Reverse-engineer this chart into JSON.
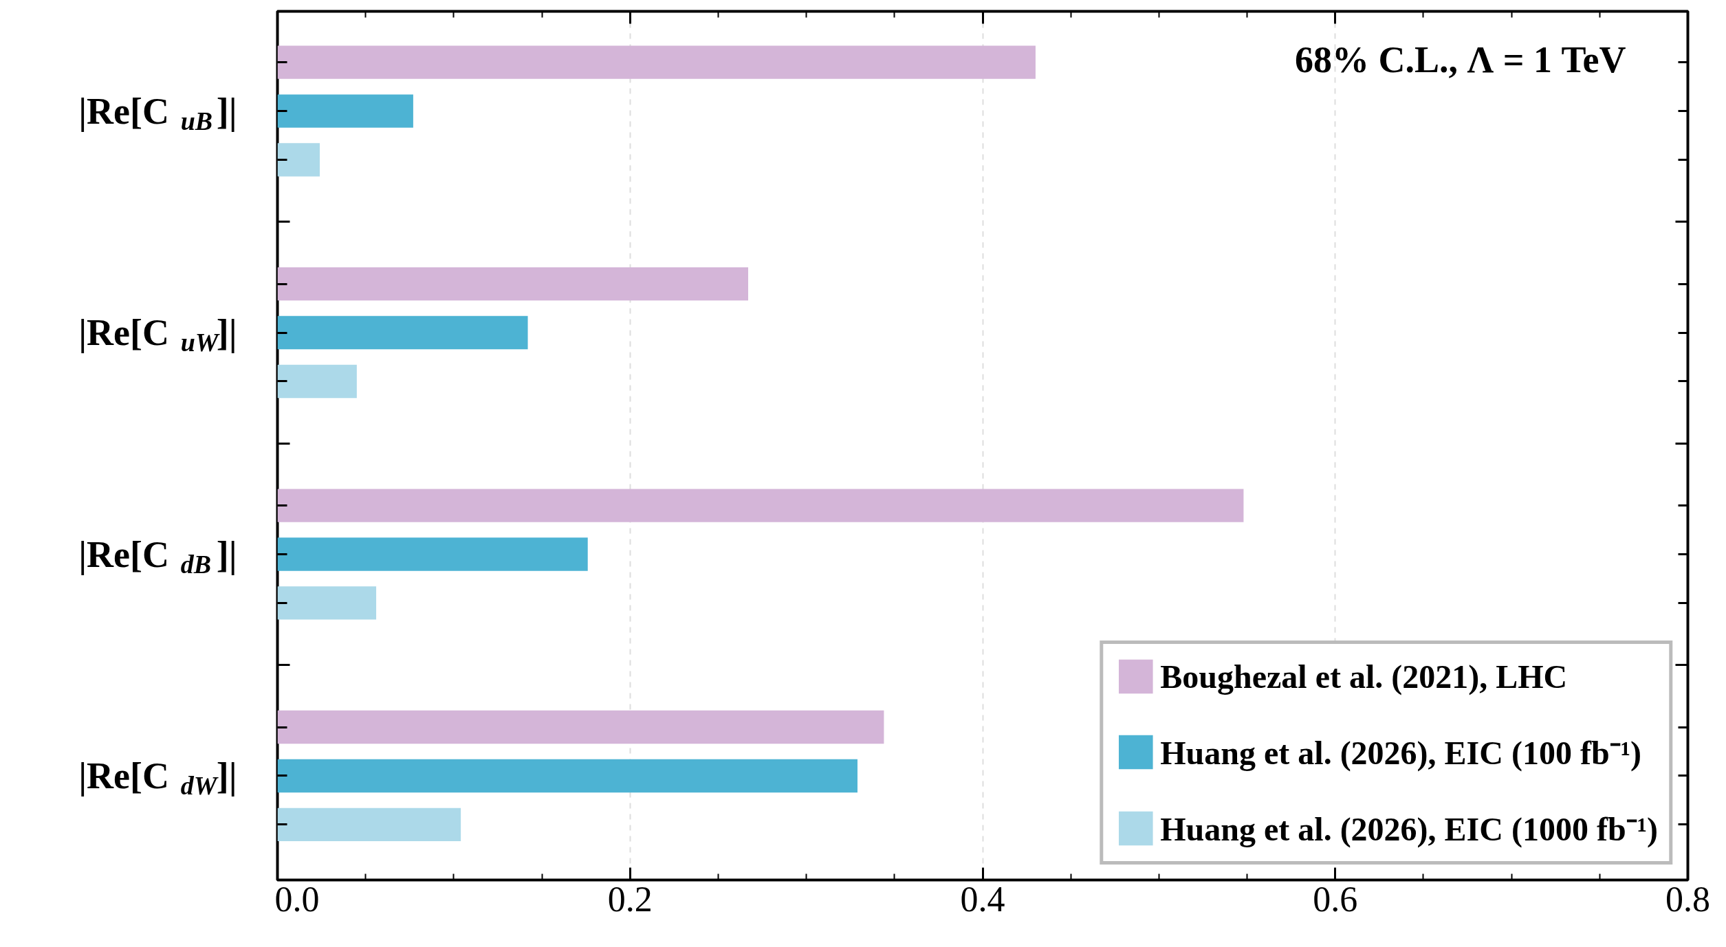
{
  "chart_data": {
    "type": "bar",
    "orientation": "horizontal",
    "categories": [
      "|Re[C$_{uB}$]|",
      "|Re[C$_{uW}$]|",
      "|Re[C$_{dB}$]|",
      "|Re[C$_{dW}$]|"
    ],
    "series": [
      {
        "name": "Boughezal et al. (2021), LHC",
        "color": "#d4b5d8",
        "values": [
          0.43,
          0.267,
          0.548,
          0.344
        ]
      },
      {
        "name": "Huang et al. (2026), EIC (100 fb⁻¹)",
        "color": "#4db3d3",
        "values": [
          0.077,
          0.142,
          0.176,
          0.329
        ]
      },
      {
        "name": "Huang et al. (2026), EIC (1000 fb⁻¹)",
        "color": "#acd9e9",
        "values": [
          0.024,
          0.045,
          0.056,
          0.104
        ]
      }
    ],
    "xlim": [
      0,
      0.8
    ],
    "xticks": [
      {
        "value": 0,
        "label": "0.0"
      },
      0.2,
      0.4,
      0.6,
      0.8
    ],
    "annotations": [
      "68% C.L., Λ = 1 TeV"
    ],
    "grid": "x",
    "legend": "bottom right"
  }
}
